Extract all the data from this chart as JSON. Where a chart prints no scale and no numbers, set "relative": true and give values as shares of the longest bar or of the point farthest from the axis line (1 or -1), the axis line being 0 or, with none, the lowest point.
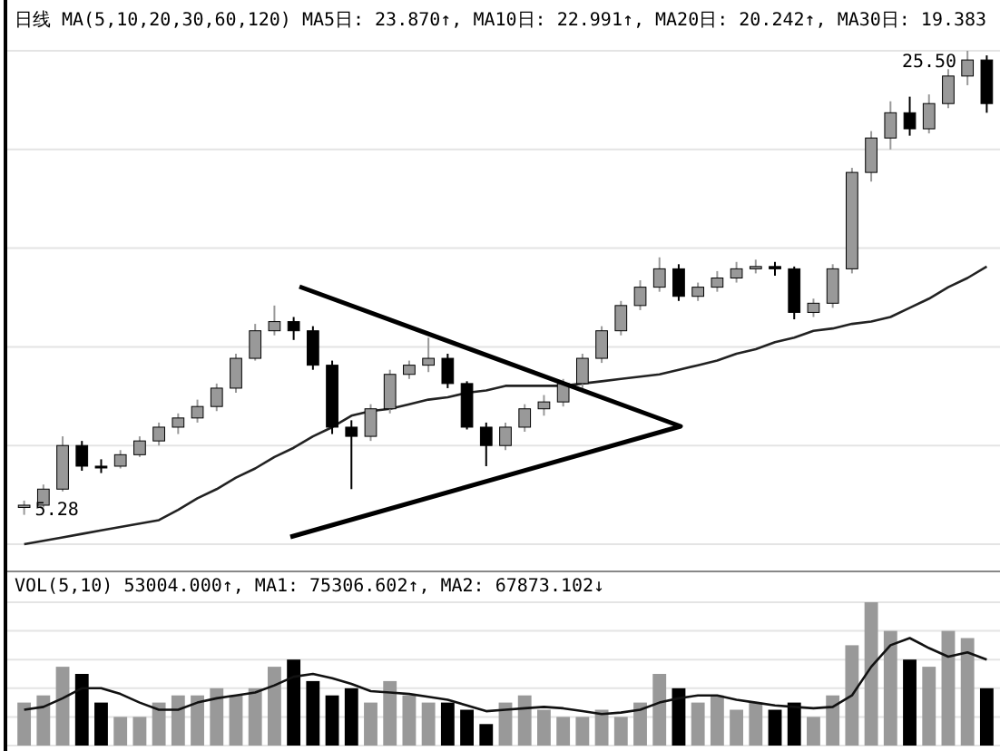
{
  "chart_data": [
    {
      "type": "candlestick",
      "title": "日线",
      "annotations": [
        "MA(5,10,20,30,60,120)",
        "MA5日: 23.870↑,",
        "MA10日: 22.991↑,",
        "MA20日: 20.242↑,",
        "MA30日: 19.383",
        "25.50",
        "5.28"
      ],
      "categories": [
        null,
        null,
        null,
        null,
        null,
        null,
        null,
        null,
        null,
        null,
        null,
        null,
        null,
        null,
        null,
        null,
        null,
        null,
        null,
        null,
        null,
        null,
        null,
        null,
        null,
        null,
        null,
        null,
        null,
        null,
        null,
        null,
        null,
        null,
        null,
        null,
        null,
        null,
        null,
        null,
        null,
        null,
        null,
        null,
        null,
        null,
        null,
        null,
        null,
        null,
        null
      ],
      "ohlc": [
        [
          5.6,
          5.9,
          5.28,
          5.7
        ],
        [
          5.7,
          6.6,
          5.6,
          6.4
        ],
        [
          6.4,
          8.7,
          6.3,
          8.3
        ],
        [
          8.3,
          8.5,
          7.2,
          7.4
        ],
        [
          7.4,
          7.7,
          7.1,
          7.4
        ],
        [
          7.4,
          8.1,
          7.3,
          7.9
        ],
        [
          7.9,
          8.7,
          7.8,
          8.5
        ],
        [
          8.5,
          9.3,
          8.3,
          9.1
        ],
        [
          9.1,
          9.7,
          8.8,
          9.5
        ],
        [
          9.5,
          10.3,
          9.3,
          10.0
        ],
        [
          10.0,
          11.0,
          9.8,
          10.8
        ],
        [
          10.8,
          12.3,
          10.6,
          12.1
        ],
        [
          12.1,
          13.6,
          12.0,
          13.3
        ],
        [
          13.3,
          14.4,
          13.1,
          13.7
        ],
        [
          13.7,
          13.9,
          12.9,
          13.3
        ],
        [
          13.3,
          13.5,
          11.6,
          11.8
        ],
        [
          11.8,
          12.0,
          8.8,
          9.1
        ],
        [
          9.1,
          9.4,
          6.4,
          8.7
        ],
        [
          8.7,
          10.1,
          8.5,
          9.9
        ],
        [
          9.9,
          11.6,
          9.7,
          11.4
        ],
        [
          11.4,
          12.0,
          11.2,
          11.8
        ],
        [
          11.8,
          13.0,
          11.5,
          12.1
        ],
        [
          12.1,
          12.3,
          10.8,
          11.0
        ],
        [
          11.0,
          11.1,
          9.0,
          9.1
        ],
        [
          9.1,
          9.3,
          7.4,
          8.3
        ],
        [
          8.3,
          9.3,
          8.1,
          9.1
        ],
        [
          9.1,
          10.1,
          8.9,
          9.9
        ],
        [
          9.9,
          10.5,
          9.6,
          10.2
        ],
        [
          10.2,
          11.2,
          10.0,
          11.0
        ],
        [
          11.0,
          12.3,
          10.8,
          12.1
        ],
        [
          12.1,
          13.5,
          11.9,
          13.3
        ],
        [
          13.3,
          14.6,
          13.1,
          14.4
        ],
        [
          14.4,
          15.5,
          14.2,
          15.2
        ],
        [
          15.2,
          16.5,
          15.0,
          16.0
        ],
        [
          16.0,
          16.2,
          14.6,
          14.8
        ],
        [
          14.8,
          15.4,
          14.6,
          15.2
        ],
        [
          15.2,
          15.9,
          15.0,
          15.6
        ],
        [
          15.6,
          16.3,
          15.4,
          16.0
        ],
        [
          16.0,
          16.4,
          15.8,
          16.1
        ],
        [
          16.1,
          16.3,
          15.7,
          16.0
        ],
        [
          16.0,
          16.1,
          13.8,
          14.1
        ],
        [
          14.1,
          14.7,
          13.9,
          14.5
        ],
        [
          14.5,
          16.2,
          14.3,
          16.0
        ],
        [
          16.0,
          20.4,
          15.8,
          20.2
        ],
        [
          20.2,
          22.0,
          19.8,
          21.7
        ],
        [
          21.7,
          23.3,
          21.2,
          22.8
        ],
        [
          22.8,
          23.5,
          21.8,
          22.1
        ],
        [
          22.1,
          23.6,
          21.9,
          23.2
        ],
        [
          23.2,
          24.7,
          23.0,
          24.4
        ],
        [
          24.4,
          25.5,
          24.0,
          25.1
        ],
        [
          25.1,
          25.3,
          22.8,
          23.2
        ]
      ],
      "colors": [
        "#999999",
        "#999999",
        "#999999",
        "#000000",
        "#000000",
        "#999999",
        "#999999",
        "#999999",
        "#999999",
        "#999999",
        "#999999",
        "#999999",
        "#999999",
        "#999999",
        "#000000",
        "#000000",
        "#000000",
        "#000000",
        "#999999",
        "#999999",
        "#999999",
        "#999999",
        "#000000",
        "#000000",
        "#000000",
        "#999999",
        "#999999",
        "#999999",
        "#999999",
        "#999999",
        "#999999",
        "#999999",
        "#999999",
        "#999999",
        "#000000",
        "#999999",
        "#999999",
        "#999999",
        "#999999",
        "#000000",
        "#000000",
        "#999999",
        "#999999",
        "#999999",
        "#999999",
        "#999999",
        "#000000",
        "#999999",
        "#999999",
        "#999999",
        "#000000"
      ],
      "series": [
        {
          "type": "line",
          "color": "#222222",
          "values": [
            4.0,
            4.15,
            4.3,
            4.45,
            4.6,
            4.75,
            4.9,
            5.05,
            5.5,
            6.0,
            6.4,
            6.9,
            7.3,
            7.8,
            8.2,
            8.7,
            9.1,
            9.6,
            9.8,
            9.9,
            10.1,
            10.3,
            10.4,
            10.6,
            10.7,
            10.9,
            10.9,
            10.9,
            10.9,
            11.0,
            11.1,
            11.2,
            11.3,
            11.4,
            11.6,
            11.8,
            12.0,
            12.3,
            12.5,
            12.8,
            13.0,
            13.3,
            13.4,
            13.6,
            13.7,
            13.9,
            14.3,
            14.7,
            15.2,
            15.6,
            16.1
          ]
        }
      ],
      "grid": "y"
    },
    {
      "type": "bar",
      "relative": true,
      "title": "VOL(5,10)",
      "annotations": [
        "53004.000↑,",
        "MA1: 75306.602↑,",
        "MA2: 67873.102↓"
      ],
      "categories": [
        null,
        null,
        null,
        null,
        null,
        null,
        null,
        null,
        null,
        null,
        null,
        null,
        null,
        null,
        null,
        null,
        null,
        null,
        null,
        null,
        null,
        null,
        null,
        null,
        null,
        null,
        null,
        null,
        null,
        null,
        null,
        null,
        null,
        null,
        null,
        null,
        null,
        null,
        null,
        null,
        null,
        null,
        null,
        null,
        null,
        null,
        null,
        null,
        null,
        null,
        null
      ],
      "values": [
        0.3,
        0.35,
        0.55,
        0.5,
        0.3,
        0.2,
        0.2,
        0.3,
        0.35,
        0.35,
        0.4,
        0.35,
        0.4,
        0.55,
        0.6,
        0.45,
        0.35,
        0.4,
        0.3,
        0.45,
        0.35,
        0.3,
        0.3,
        0.25,
        0.15,
        0.3,
        0.35,
        0.25,
        0.2,
        0.2,
        0.25,
        0.2,
        0.3,
        0.5,
        0.4,
        0.3,
        0.35,
        0.25,
        0.3,
        0.25,
        0.3,
        0.2,
        0.35,
        0.7,
        1.0,
        0.8,
        0.6,
        0.55,
        0.8,
        0.75,
        0.4
      ],
      "colors": [
        "#999999",
        "#999999",
        "#999999",
        "#000000",
        "#000000",
        "#999999",
        "#999999",
        "#999999",
        "#999999",
        "#999999",
        "#999999",
        "#999999",
        "#999999",
        "#999999",
        "#000000",
        "#000000",
        "#000000",
        "#000000",
        "#999999",
        "#999999",
        "#999999",
        "#999999",
        "#000000",
        "#000000",
        "#000000",
        "#999999",
        "#999999",
        "#999999",
        "#999999",
        "#999999",
        "#999999",
        "#999999",
        "#999999",
        "#999999",
        "#000000",
        "#999999",
        "#999999",
        "#999999",
        "#999999",
        "#000000",
        "#000000",
        "#999999",
        "#999999",
        "#999999",
        "#999999",
        "#999999",
        "#000000",
        "#999999",
        "#999999",
        "#999999",
        "#000000"
      ],
      "series": [
        {
          "type": "line",
          "color": "#111111",
          "values": [
            0.25,
            0.27,
            0.33,
            0.4,
            0.4,
            0.36,
            0.3,
            0.25,
            0.25,
            0.3,
            0.33,
            0.35,
            0.37,
            0.42,
            0.48,
            0.5,
            0.47,
            0.43,
            0.38,
            0.37,
            0.36,
            0.34,
            0.32,
            0.28,
            0.24,
            0.25,
            0.26,
            0.27,
            0.26,
            0.24,
            0.22,
            0.23,
            0.25,
            0.3,
            0.33,
            0.35,
            0.35,
            0.32,
            0.3,
            0.28,
            0.27,
            0.26,
            0.27,
            0.35,
            0.55,
            0.7,
            0.75,
            0.68,
            0.62,
            0.65,
            0.6
          ]
        }
      ],
      "grid": "y"
    }
  ]
}
